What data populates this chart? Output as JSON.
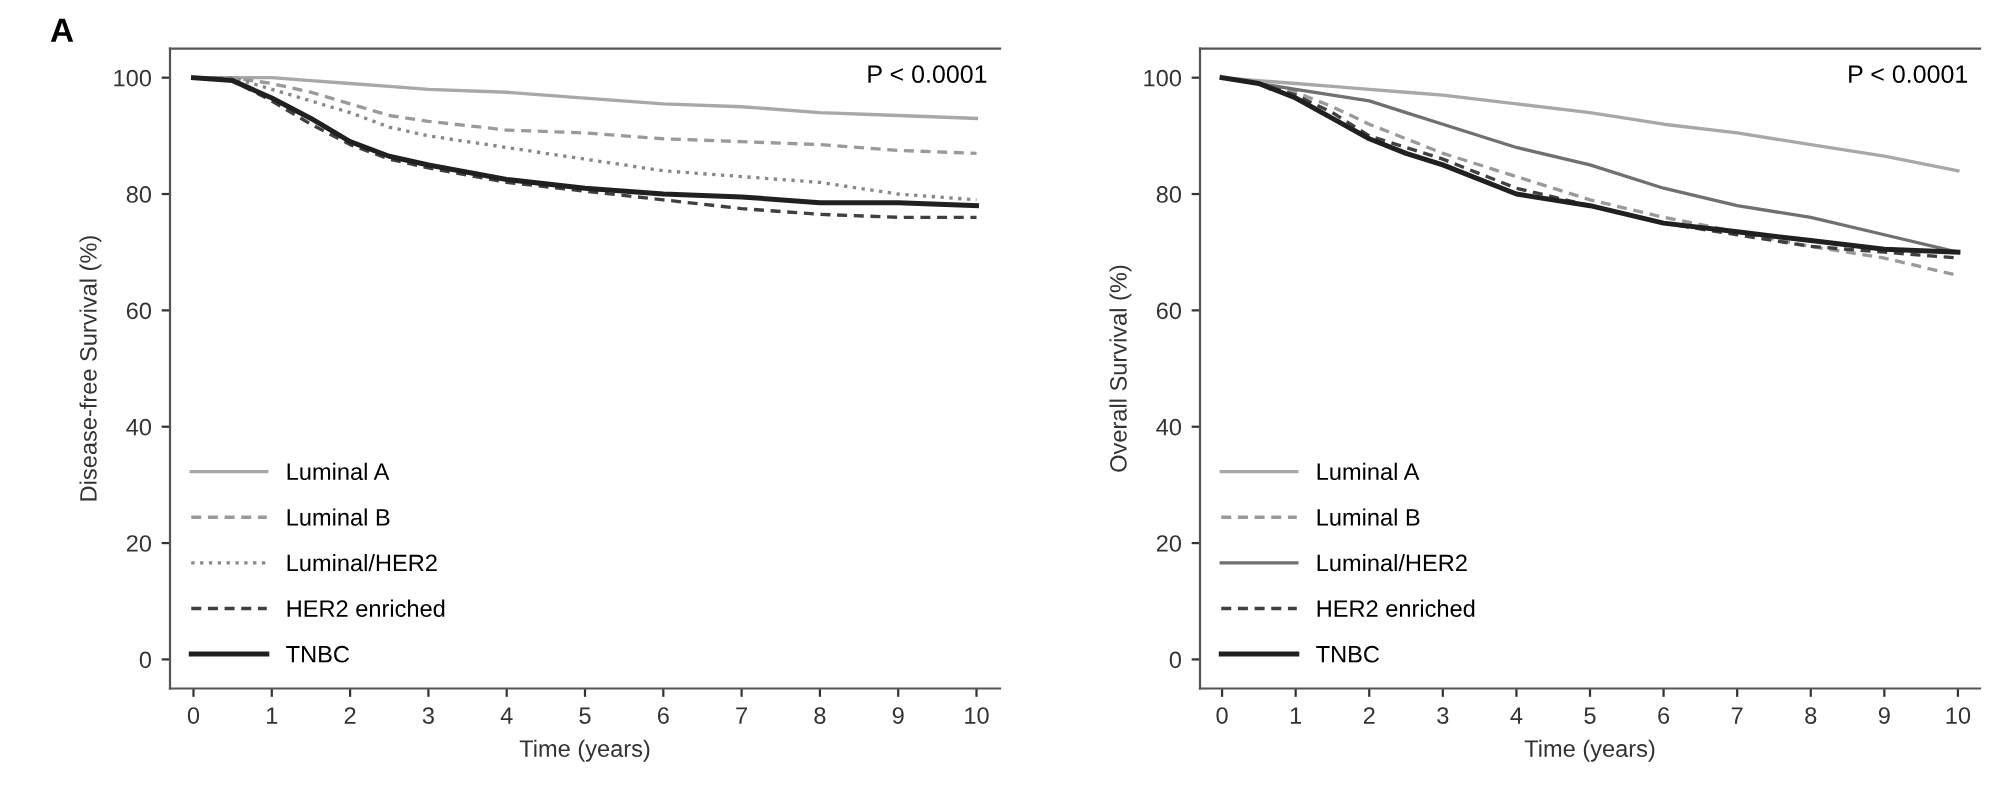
{
  "chart_data": [
    {
      "type": "line",
      "title": "A",
      "xlabel": "Time (years)",
      "ylabel": "Disease-free Survival (%)",
      "annotations": [
        "P < 0.0001"
      ],
      "x": [
        0,
        0.5,
        1,
        1.5,
        2,
        2.5,
        3,
        4,
        5,
        6,
        7,
        8,
        9,
        10
      ],
      "series": [
        {
          "name": "Luminal A",
          "color": "#a8a8a8",
          "line_style": "solid",
          "values": [
            100,
            100,
            100,
            99.5,
            99,
            98.5,
            98,
            97.5,
            96.5,
            95.5,
            95,
            94,
            93.5,
            93
          ]
        },
        {
          "name": "Luminal B",
          "color": "#9a9a9a",
          "line_style": "dashed",
          "values": [
            100,
            100,
            99,
            97.5,
            95.5,
            93.5,
            92.5,
            91,
            90.5,
            89.5,
            89,
            88.5,
            87.5,
            87
          ]
        },
        {
          "name": "Luminal/HER2",
          "color": "#888888",
          "line_style": "dotted",
          "values": [
            100,
            100,
            98,
            96,
            94,
            91.5,
            90,
            88,
            86,
            84,
            83,
            82,
            80,
            79
          ]
        },
        {
          "name": "HER2 enriched",
          "color": "#404040",
          "line_style": "dashed",
          "values": [
            100,
            99.5,
            96,
            92,
            88.5,
            86,
            84.5,
            82,
            80.5,
            79,
            77.5,
            76.5,
            76,
            76
          ]
        },
        {
          "name": "TNBC",
          "color": "#202020",
          "line_style": "solid",
          "values": [
            100,
            99.5,
            96.5,
            93,
            89,
            86.5,
            85,
            82.5,
            81,
            80,
            79.5,
            78.5,
            78.5,
            78
          ]
        }
      ],
      "xlim": [
        -0.3,
        10.3
      ],
      "ylim": [
        -5,
        105
      ],
      "xticks": [
        0,
        1,
        2,
        3,
        4,
        5,
        6,
        7,
        8,
        9,
        10
      ],
      "yticks": [
        0,
        20,
        40,
        60,
        80,
        100
      ],
      "legend": "bottom left",
      "grid": false
    },
    {
      "type": "line",
      "xlabel": "Time (years)",
      "ylabel": "Overall Survival (%)",
      "annotations": [
        "P < 0.0001"
      ],
      "x": [
        0,
        0.5,
        1,
        1.5,
        2,
        2.5,
        3,
        4,
        5,
        6,
        7,
        8,
        9,
        10
      ],
      "series": [
        {
          "name": "Luminal A",
          "color": "#a8a8a8",
          "line_style": "solid",
          "values": [
            100,
            99.5,
            99,
            98.5,
            98,
            97.5,
            97,
            95.5,
            94,
            92,
            90.5,
            88.5,
            86.5,
            84
          ]
        },
        {
          "name": "Luminal B",
          "color": "#9a9a9a",
          "line_style": "dashed",
          "values": [
            100,
            99,
            97.5,
            95,
            92,
            89.5,
            87,
            83,
            79,
            76,
            73.5,
            71,
            69,
            66
          ]
        },
        {
          "name": "Luminal/HER2",
          "color": "#707070",
          "line_style": "solid",
          "values": [
            100,
            99,
            98,
            97,
            96,
            94,
            92,
            88,
            85,
            81,
            78,
            76,
            73,
            70
          ]
        },
        {
          "name": "HER2 enriched",
          "color": "#404040",
          "line_style": "dashed",
          "values": [
            100,
            99,
            97,
            94,
            90,
            88,
            86,
            81,
            78,
            75,
            73,
            71,
            70,
            69
          ]
        },
        {
          "name": "TNBC",
          "color": "#202020",
          "line_style": "solid",
          "values": [
            100,
            99,
            96.5,
            93,
            89.5,
            87,
            85,
            80,
            78,
            75,
            73.5,
            72,
            70.5,
            70
          ]
        }
      ],
      "xlim": [
        -0.3,
        10.3
      ],
      "ylim": [
        -5,
        105
      ],
      "xticks": [
        0,
        1,
        2,
        3,
        4,
        5,
        6,
        7,
        8,
        9,
        10
      ],
      "yticks": [
        0,
        20,
        40,
        60,
        80,
        100
      ],
      "legend": "bottom left",
      "grid": false
    }
  ]
}
